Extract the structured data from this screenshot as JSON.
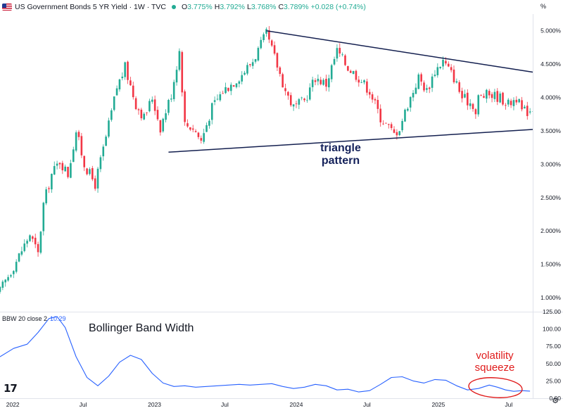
{
  "header": {
    "title": "US Government Bonds 5 YR Yield · 1W · TVC",
    "ohlc": [
      {
        "k": "O",
        "v": "3.775%"
      },
      {
        "k": "H",
        "v": "3.792%"
      },
      {
        "k": "L",
        "v": "3.768%"
      },
      {
        "k": "C",
        "v": "3.789%"
      },
      {
        "k": "",
        "v": "+0.028 (+0.74%)"
      }
    ],
    "unit": "%"
  },
  "indicator": {
    "legend": "BBW 20 close 2",
    "value": "10.29"
  },
  "annotations": {
    "triangle_line1": "triangle",
    "triangle_line2": "pattern",
    "bbw_title": "Bollinger Band Width",
    "squeeze_line1": "volatility",
    "squeeze_line2": "squeeze"
  },
  "colors": {
    "up": "#22ab94",
    "down": "#f23645",
    "trendline": "#131f4f",
    "bbw_line": "#2962ff",
    "annotation_red": "#e01b1b",
    "annotation_navy": "#14215a"
  },
  "chart_data": [
    {
      "type": "candlestick",
      "y_unit": "%",
      "ylim": [
        0.8,
        5.25
      ],
      "y_ticks": [
        1.0,
        1.5,
        2.0,
        2.5,
        3.0,
        3.5,
        4.0,
        4.5,
        5.0
      ],
      "y_tick_labels": [
        "1.000%",
        "1.500%",
        "2.000%",
        "2.500%",
        "3.000%",
        "3.500%",
        "4.000%",
        "4.500%",
        "5.000%"
      ],
      "x_range": [
        "2021-11-29",
        "2025-09-01"
      ],
      "x_ticks": [
        {
          "date": "2022-01-01",
          "label": "2022"
        },
        {
          "date": "2022-07-01",
          "label": "Jul"
        },
        {
          "date": "2023-01-01",
          "label": "2023"
        },
        {
          "date": "2023-07-01",
          "label": "Jul"
        },
        {
          "date": "2024-01-01",
          "label": "2024"
        },
        {
          "date": "2024-07-01",
          "label": "Jul"
        },
        {
          "date": "2025-01-01",
          "label": "2025"
        },
        {
          "date": "2025-07-01",
          "label": "Jul"
        }
      ],
      "closes": [
        {
          "date": "2021-11-29",
          "value": 1.1
        },
        {
          "date": "2022-01-10",
          "value": 1.55
        },
        {
          "date": "2022-02-14",
          "value": 1.95
        },
        {
          "date": "2022-03-07",
          "value": 1.65
        },
        {
          "date": "2022-03-21",
          "value": 2.4
        },
        {
          "date": "2022-04-11",
          "value": 2.85
        },
        {
          "date": "2022-05-02",
          "value": 3.05
        },
        {
          "date": "2022-05-23",
          "value": 2.85
        },
        {
          "date": "2022-06-13",
          "value": 3.5
        },
        {
          "date": "2022-07-04",
          "value": 3.0
        },
        {
          "date": "2022-08-01",
          "value": 2.7
        },
        {
          "date": "2022-08-29",
          "value": 3.4
        },
        {
          "date": "2022-09-26",
          "value": 4.15
        },
        {
          "date": "2022-10-17",
          "value": 4.45
        },
        {
          "date": "2022-11-14",
          "value": 3.9
        },
        {
          "date": "2022-12-05",
          "value": 3.7
        },
        {
          "date": "2022-12-26",
          "value": 4.0
        },
        {
          "date": "2023-01-16",
          "value": 3.55
        },
        {
          "date": "2023-02-13",
          "value": 4.05
        },
        {
          "date": "2023-03-06",
          "value": 4.7
        },
        {
          "date": "2023-03-20",
          "value": 3.6
        },
        {
          "date": "2023-04-10",
          "value": 3.55
        },
        {
          "date": "2023-05-01",
          "value": 3.35
        },
        {
          "date": "2023-05-29",
          "value": 3.85
        },
        {
          "date": "2023-06-26",
          "value": 4.1
        },
        {
          "date": "2023-07-17",
          "value": 4.2
        },
        {
          "date": "2023-08-14",
          "value": 4.35
        },
        {
          "date": "2023-09-11",
          "value": 4.55
        },
        {
          "date": "2023-10-16",
          "value": 4.95
        },
        {
          "date": "2023-11-06",
          "value": 4.6
        },
        {
          "date": "2023-12-04",
          "value": 4.1
        },
        {
          "date": "2023-12-25",
          "value": 3.85
        },
        {
          "date": "2024-01-22",
          "value": 3.95
        },
        {
          "date": "2024-02-19",
          "value": 4.3
        },
        {
          "date": "2024-03-18",
          "value": 4.2
        },
        {
          "date": "2024-04-15",
          "value": 4.7
        },
        {
          "date": "2024-05-13",
          "value": 4.45
        },
        {
          "date": "2024-06-10",
          "value": 4.3
        },
        {
          "date": "2024-07-08",
          "value": 4.1
        },
        {
          "date": "2024-08-05",
          "value": 3.7
        },
        {
          "date": "2024-09-09",
          "value": 3.45
        },
        {
          "date": "2024-09-23",
          "value": 3.55
        },
        {
          "date": "2024-10-14",
          "value": 3.9
        },
        {
          "date": "2024-11-11",
          "value": 4.3
        },
        {
          "date": "2024-12-02",
          "value": 4.1
        },
        {
          "date": "2024-12-23",
          "value": 4.4
        },
        {
          "date": "2025-01-13",
          "value": 4.55
        },
        {
          "date": "2025-02-10",
          "value": 4.3
        },
        {
          "date": "2025-03-03",
          "value": 4.0
        },
        {
          "date": "2025-03-31",
          "value": 3.9
        },
        {
          "date": "2025-04-07",
          "value": 3.75
        },
        {
          "date": "2025-04-14",
          "value": 4.0
        },
        {
          "date": "2025-05-12",
          "value": 4.05
        },
        {
          "date": "2025-06-09",
          "value": 4.0
        },
        {
          "date": "2025-06-30",
          "value": 3.9
        },
        {
          "date": "2025-07-21",
          "value": 4.0
        },
        {
          "date": "2025-08-04",
          "value": 3.8
        },
        {
          "date": "2025-08-25",
          "value": 3.79
        }
      ],
      "trendlines": [
        {
          "name": "upper",
          "from": {
            "date": "2023-10-16",
            "value": 5.0
          },
          "to": {
            "date": "2025-09-01",
            "value": 4.38
          }
        },
        {
          "name": "lower",
          "from": {
            "date": "2023-02-06",
            "value": 3.18
          },
          "to": {
            "date": "2025-09-01",
            "value": 3.52
          }
        }
      ]
    },
    {
      "type": "line",
      "ylim": [
        0,
        125
      ],
      "y_ticks": [
        0,
        25,
        50,
        75,
        100,
        125
      ],
      "y_tick_labels": [
        "0.00",
        "25.00",
        "50.00",
        "75.00",
        "100.00",
        "125.00"
      ],
      "series": [
        {
          "points": [
            {
              "date": "2021-11-29",
              "value": 60
            },
            {
              "date": "2022-01-03",
              "value": 72
            },
            {
              "date": "2022-02-07",
              "value": 78
            },
            {
              "date": "2022-03-07",
              "value": 95
            },
            {
              "date": "2022-04-04",
              "value": 115
            },
            {
              "date": "2022-04-25",
              "value": 118
            },
            {
              "date": "2022-05-16",
              "value": 102
            },
            {
              "date": "2022-06-13",
              "value": 60
            },
            {
              "date": "2022-07-11",
              "value": 30
            },
            {
              "date": "2022-08-08",
              "value": 18
            },
            {
              "date": "2022-09-05",
              "value": 32
            },
            {
              "date": "2022-10-03",
              "value": 52
            },
            {
              "date": "2022-10-31",
              "value": 62
            },
            {
              "date": "2022-11-28",
              "value": 56
            },
            {
              "date": "2022-12-26",
              "value": 36
            },
            {
              "date": "2023-01-23",
              "value": 22
            },
            {
              "date": "2023-02-20",
              "value": 17
            },
            {
              "date": "2023-03-20",
              "value": 18
            },
            {
              "date": "2023-04-17",
              "value": 16
            },
            {
              "date": "2023-05-15",
              "value": 17
            },
            {
              "date": "2023-06-12",
              "value": 18
            },
            {
              "date": "2023-07-10",
              "value": 19
            },
            {
              "date": "2023-08-07",
              "value": 20
            },
            {
              "date": "2023-09-04",
              "value": 19
            },
            {
              "date": "2023-10-02",
              "value": 20
            },
            {
              "date": "2023-10-30",
              "value": 21
            },
            {
              "date": "2023-11-27",
              "value": 17
            },
            {
              "date": "2023-12-25",
              "value": 14
            },
            {
              "date": "2024-01-22",
              "value": 16
            },
            {
              "date": "2024-02-19",
              "value": 20
            },
            {
              "date": "2024-03-18",
              "value": 18
            },
            {
              "date": "2024-04-15",
              "value": 12
            },
            {
              "date": "2024-05-13",
              "value": 13
            },
            {
              "date": "2024-06-10",
              "value": 9
            },
            {
              "date": "2024-07-08",
              "value": 11
            },
            {
              "date": "2024-08-05",
              "value": 20
            },
            {
              "date": "2024-09-02",
              "value": 30
            },
            {
              "date": "2024-09-30",
              "value": 31
            },
            {
              "date": "2024-10-28",
              "value": 25
            },
            {
              "date": "2024-11-25",
              "value": 22
            },
            {
              "date": "2024-12-23",
              "value": 27
            },
            {
              "date": "2025-01-20",
              "value": 26
            },
            {
              "date": "2025-02-17",
              "value": 18
            },
            {
              "date": "2025-03-17",
              "value": 12
            },
            {
              "date": "2025-04-14",
              "value": 14
            },
            {
              "date": "2025-05-12",
              "value": 19
            },
            {
              "date": "2025-06-02",
              "value": 16
            },
            {
              "date": "2025-06-23",
              "value": 12
            },
            {
              "date": "2025-07-14",
              "value": 10
            },
            {
              "date": "2025-08-04",
              "value": 11
            },
            {
              "date": "2025-08-25",
              "value": 10.29
            }
          ]
        }
      ]
    }
  ]
}
